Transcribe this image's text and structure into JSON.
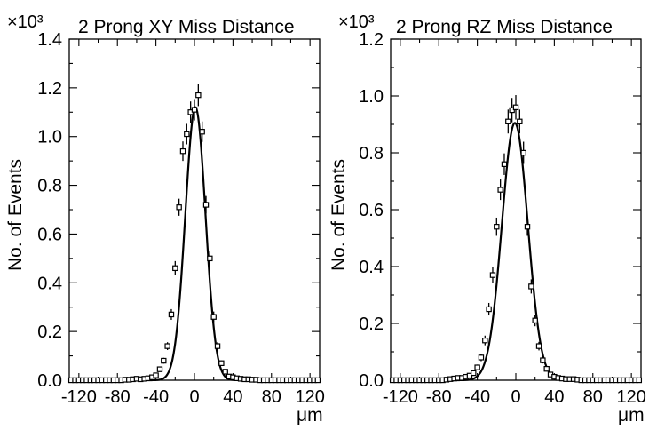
{
  "chart_data": [
    {
      "type": "scatter",
      "title": "2 Prong XY Miss Distance",
      "ylabel": "No. of Events",
      "xlabel": "μm",
      "y_multiplier": "×10³",
      "xlim": [
        -130,
        130
      ],
      "ylim": [
        0,
        1.4
      ],
      "xticks": [
        -120,
        -80,
        -40,
        0,
        40,
        80,
        120
      ],
      "xtick_labels": [
        "-120",
        "-80",
        "-40",
        "0",
        "40",
        "80",
        "120"
      ],
      "yticks": [
        0,
        0.2,
        0.4,
        0.6,
        0.8,
        1.0,
        1.2,
        1.4
      ],
      "ytick_labels": [
        "0.0",
        "0.2",
        "0.4",
        "0.6",
        "0.8",
        "1.0",
        "1.2",
        "1.4"
      ],
      "series": [
        {
          "name": "data",
          "x": [
            -128,
            -124,
            -120,
            -116,
            -112,
            -108,
            -104,
            -100,
            -96,
            -92,
            -88,
            -84,
            -80,
            -76,
            -72,
            -68,
            -64,
            -60,
            -56,
            -52,
            -48,
            -44,
            -40,
            -36,
            -32,
            -28,
            -24,
            -20,
            -16,
            -12,
            -8,
            -4,
            0,
            4,
            8,
            12,
            16,
            20,
            24,
            28,
            32,
            36,
            40,
            44,
            48,
            52,
            56,
            60,
            64,
            68,
            72,
            76,
            80,
            84,
            88,
            92,
            96,
            100,
            104,
            108,
            112,
            116,
            120,
            124,
            128
          ],
          "y": [
            0,
            0,
            0,
            0,
            0,
            0,
            0,
            0,
            0,
            0,
            0,
            0,
            0,
            0,
            0.002,
            0.002,
            0.004,
            0.006,
            0.004,
            0.006,
            0.008,
            0.012,
            0.02,
            0.045,
            0.08,
            0.14,
            0.27,
            0.46,
            0.71,
            0.94,
            1.01,
            1.1,
            1.11,
            1.17,
            1.02,
            0.72,
            0.5,
            0.26,
            0.14,
            0.07,
            0.035,
            0.015,
            0.012,
            0.008,
            0.006,
            0.004,
            0.004,
            0.002,
            0.002,
            0,
            0,
            0,
            0,
            0,
            0,
            0,
            0,
            0,
            0,
            0,
            0,
            0,
            0,
            0,
            0
          ],
          "yerr": [
            0,
            0,
            0,
            0,
            0,
            0,
            0,
            0,
            0,
            0,
            0,
            0,
            0,
            0,
            0.002,
            0.002,
            0.003,
            0.003,
            0.003,
            0.003,
            0.004,
            0.005,
            0.006,
            0.009,
            0.012,
            0.016,
            0.022,
            0.029,
            0.035,
            0.04,
            0.042,
            0.044,
            0.044,
            0.045,
            0.042,
            0.036,
            0.03,
            0.022,
            0.016,
            0.011,
            0.008,
            0.005,
            0.005,
            0.004,
            0.003,
            0.003,
            0.003,
            0.002,
            0.002,
            0,
            0,
            0,
            0,
            0,
            0,
            0,
            0,
            0,
            0,
            0,
            0,
            0,
            0,
            0,
            0
          ]
        },
        {
          "name": "gaussian fit",
          "amplitude": 1.12,
          "mean": 1,
          "sigma": 10.5
        }
      ]
    },
    {
      "type": "scatter",
      "title": "2 Prong RZ Miss Distance",
      "ylabel": "No. of Events",
      "xlabel": "μm",
      "y_multiplier": "×10³",
      "xlim": [
        -130,
        130
      ],
      "ylim": [
        0,
        1.2
      ],
      "xticks": [
        -120,
        -80,
        -40,
        0,
        40,
        80,
        120
      ],
      "xtick_labels": [
        "-120",
        "-80",
        "-40",
        "0",
        "40",
        "80",
        "120"
      ],
      "yticks": [
        0,
        0.2,
        0.4,
        0.6,
        0.8,
        1.0,
        1.2
      ],
      "ytick_labels": [
        "0.0",
        "0.2",
        "0.4",
        "0.6",
        "0.8",
        "1.0",
        "1.2"
      ],
      "series": [
        {
          "name": "data",
          "x": [
            -128,
            -124,
            -120,
            -116,
            -112,
            -108,
            -104,
            -100,
            -96,
            -92,
            -88,
            -84,
            -80,
            -76,
            -72,
            -68,
            -64,
            -60,
            -56,
            -52,
            -48,
            -44,
            -40,
            -36,
            -32,
            -28,
            -24,
            -20,
            -16,
            -12,
            -8,
            -4,
            0,
            4,
            8,
            12,
            16,
            20,
            24,
            28,
            32,
            36,
            40,
            44,
            48,
            52,
            56,
            60,
            64,
            68,
            72,
            76,
            80,
            84,
            88,
            92,
            96,
            100,
            104,
            108,
            112,
            116,
            120,
            124,
            128
          ],
          "y": [
            0,
            0,
            0,
            0,
            0,
            0,
            0,
            0,
            0,
            0,
            0,
            0,
            0,
            0,
            0.002,
            0.004,
            0.006,
            0.008,
            0.008,
            0.012,
            0.016,
            0.025,
            0.045,
            0.08,
            0.14,
            0.25,
            0.37,
            0.54,
            0.67,
            0.76,
            0.91,
            0.95,
            0.96,
            0.91,
            0.8,
            0.54,
            0.33,
            0.21,
            0.12,
            0.07,
            0.04,
            0.02,
            0.012,
            0.008,
            0.006,
            0.004,
            0.004,
            0.004,
            0.002,
            0,
            0,
            0,
            0,
            0,
            0,
            0,
            0,
            0,
            0,
            0,
            0,
            0,
            0,
            0,
            0
          ],
          "yerr": [
            0,
            0,
            0,
            0,
            0,
            0,
            0,
            0,
            0,
            0,
            0,
            0,
            0,
            0,
            0.002,
            0.003,
            0.003,
            0.004,
            0.004,
            0.005,
            0.006,
            0.007,
            0.01,
            0.013,
            0.017,
            0.022,
            0.027,
            0.032,
            0.036,
            0.038,
            0.042,
            0.043,
            0.043,
            0.042,
            0.039,
            0.032,
            0.025,
            0.02,
            0.015,
            0.011,
            0.009,
            0.006,
            0.005,
            0.004,
            0.003,
            0.003,
            0.003,
            0.003,
            0.002,
            0,
            0,
            0,
            0,
            0,
            0,
            0,
            0,
            0,
            0,
            0,
            0,
            0,
            0,
            0,
            0
          ]
        },
        {
          "name": "gaussian fit",
          "amplitude": 0.905,
          "mean": -1,
          "sigma": 13.5
        }
      ]
    }
  ]
}
